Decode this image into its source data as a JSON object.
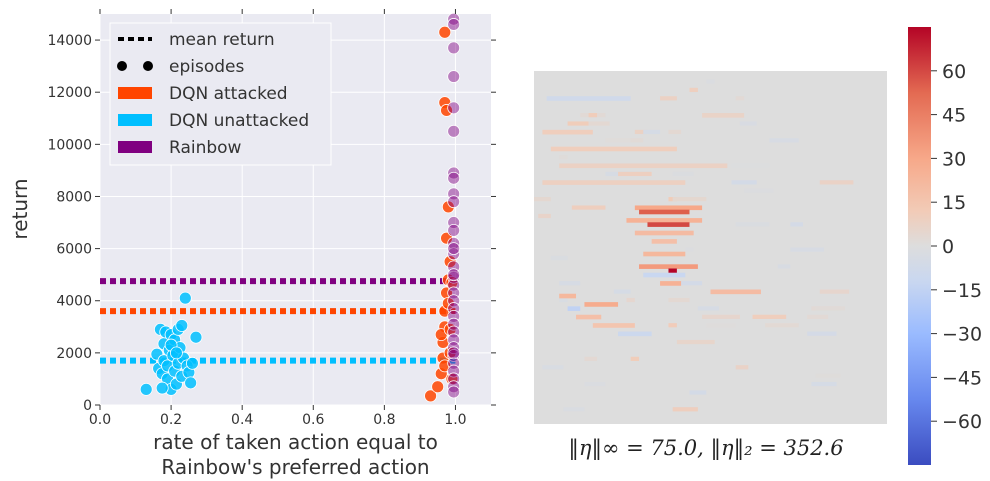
{
  "chart_data": [
    {
      "type": "scatter",
      "xlabel": "rate of taken action equal to\nRainbow's preferred action",
      "ylabel": "return",
      "xlim": [
        0.0,
        1.1
      ],
      "ylim": [
        0,
        15000
      ],
      "xticks": [
        "0.0",
        "0.2",
        "0.4",
        "0.6",
        "0.8",
        "1.0"
      ],
      "yticks": [
        "0",
        "2000",
        "4000",
        "6000",
        "8000",
        "10000",
        "12000",
        "14000"
      ],
      "grid": true,
      "legend_position": "top-left",
      "legend": [
        {
          "label": "mean return",
          "kind": "dotted-line",
          "color": "#000000"
        },
        {
          "label": "episodes",
          "kind": "dots",
          "color": "#000000"
        },
        {
          "label": "DQN attacked",
          "kind": "patch",
          "color": "#ff4500"
        },
        {
          "label": "DQN unattacked",
          "kind": "patch",
          "color": "#00bfff"
        },
        {
          "label": "Rainbow",
          "kind": "patch",
          "color": "#800080"
        }
      ],
      "series": [
        {
          "name": "DQN unattacked",
          "color": "#00bfff",
          "mean": 1700,
          "points": [
            [
              0.13,
              600
            ],
            [
              0.16,
              1950
            ],
            [
              0.165,
              1400
            ],
            [
              0.17,
              2900
            ],
            [
              0.175,
              1200
            ],
            [
              0.18,
              2350
            ],
            [
              0.18,
              1700
            ],
            [
              0.185,
              2800
            ],
            [
              0.19,
              1000
            ],
            [
              0.19,
              1500
            ],
            [
              0.195,
              2100
            ],
            [
              0.2,
              2700
            ],
            [
              0.2,
              600
            ],
            [
              0.205,
              1900
            ],
            [
              0.21,
              1300
            ],
            [
              0.21,
              2500
            ],
            [
              0.215,
              800
            ],
            [
              0.22,
              1600
            ],
            [
              0.22,
              2900
            ],
            [
              0.225,
              2200
            ],
            [
              0.23,
              3050
            ],
            [
              0.23,
              1100
            ],
            [
              0.235,
              1800
            ],
            [
              0.24,
              4100
            ],
            [
              0.245,
              1500
            ],
            [
              0.25,
              1250
            ],
            [
              0.255,
              850
            ],
            [
              0.26,
              1600
            ],
            [
              0.27,
              2600
            ],
            [
              0.175,
              650
            ],
            [
              0.2,
              2300
            ],
            [
              0.215,
              2000
            ]
          ]
        },
        {
          "name": "DQN attacked",
          "color": "#ff4500",
          "mean": 3600,
          "points": [
            [
              0.93,
              350
            ],
            [
              0.95,
              700
            ],
            [
              0.96,
              1200
            ],
            [
              0.965,
              1800
            ],
            [
              0.965,
              2400
            ],
            [
              0.97,
              3000
            ],
            [
              0.97,
              3600
            ],
            [
              0.975,
              4300
            ],
            [
              0.98,
              4800
            ],
            [
              0.975,
              6400
            ],
            [
              0.98,
              7600
            ],
            [
              0.97,
              11600
            ],
            [
              0.97,
              14300
            ],
            [
              0.985,
              2000
            ],
            [
              0.99,
              1000
            ],
            [
              0.985,
              5500
            ],
            [
              0.96,
              2700
            ],
            [
              0.98,
              3900
            ],
            [
              0.99,
              4700
            ],
            [
              0.975,
              11300
            ],
            [
              0.97,
              1500
            ],
            [
              0.985,
              2900
            ]
          ]
        },
        {
          "name": "Rainbow",
          "color": "#800080",
          "mean": 4750,
          "points": [
            [
              0.995,
              14800
            ],
            [
              0.995,
              14600
            ],
            [
              0.995,
              13700
            ],
            [
              0.995,
              12600
            ],
            [
              0.995,
              10500
            ],
            [
              0.995,
              11400
            ],
            [
              0.995,
              8900
            ],
            [
              0.995,
              8700
            ],
            [
              0.995,
              8100
            ],
            [
              0.995,
              7800
            ],
            [
              0.995,
              7000
            ],
            [
              0.995,
              6700
            ],
            [
              0.995,
              6200
            ],
            [
              0.995,
              5800
            ],
            [
              0.995,
              5300
            ],
            [
              0.995,
              4900
            ],
            [
              0.995,
              4600
            ],
            [
              0.995,
              4300
            ],
            [
              0.995,
              4000
            ],
            [
              0.995,
              3700
            ],
            [
              0.995,
              3400
            ],
            [
              0.995,
              3100
            ],
            [
              0.995,
              2800
            ],
            [
              0.995,
              2500
            ],
            [
              0.995,
              2200
            ],
            [
              0.995,
              1900
            ],
            [
              0.995,
              1600
            ],
            [
              0.995,
              1300
            ],
            [
              0.995,
              1000
            ],
            [
              0.995,
              700
            ],
            [
              0.995,
              500
            ],
            [
              0.995,
              6000
            ],
            [
              0.995,
              5000
            ],
            [
              0.995,
              2000
            ]
          ]
        }
      ]
    },
    {
      "type": "heatmap",
      "caption": "‖η‖∞ = 75.0, ‖η‖₂ = 352.6",
      "colorscale": "coolwarm",
      "range": [
        -75,
        75
      ],
      "colorbar_ticks": [
        "60",
        "45",
        "30",
        "15",
        "0",
        "−15",
        "−30",
        "−45",
        "−60"
      ],
      "colorbar_tick_values": [
        60,
        45,
        30,
        15,
        0,
        -15,
        -30,
        -45,
        -60
      ],
      "grid_size": 84,
      "background_value": 0,
      "features": [
        {
          "row": 32,
          "col": 24,
          "len": 16,
          "value": 30
        },
        {
          "row": 33,
          "col": 25,
          "len": 12,
          "value": 55
        },
        {
          "row": 35,
          "col": 22,
          "len": 18,
          "value": 25
        },
        {
          "row": 36,
          "col": 27,
          "len": 10,
          "value": 60
        },
        {
          "row": 38,
          "col": 24,
          "len": 14,
          "value": 20
        },
        {
          "row": 40,
          "col": 28,
          "len": 6,
          "value": 18
        },
        {
          "row": 43,
          "col": 26,
          "len": 10,
          "value": 22
        },
        {
          "row": 46,
          "col": 25,
          "len": 14,
          "value": 35
        },
        {
          "row": 47,
          "col": 32,
          "len": 2,
          "value": 75
        },
        {
          "row": 48,
          "col": 26,
          "len": 10,
          "value": -12
        },
        {
          "row": 50,
          "col": 30,
          "len": 5,
          "value": 25
        },
        {
          "row": 52,
          "col": 42,
          "len": 12,
          "value": 20
        },
        {
          "row": 53,
          "col": 6,
          "len": 4,
          "value": 22
        },
        {
          "row": 55,
          "col": 12,
          "len": 8,
          "value": 28
        },
        {
          "row": 56,
          "col": 8,
          "len": 3,
          "value": -15
        },
        {
          "row": 58,
          "col": 10,
          "len": 6,
          "value": 18
        },
        {
          "row": 60,
          "col": 14,
          "len": 10,
          "value": 15
        },
        {
          "row": 62,
          "col": 20,
          "len": 8,
          "value": -10
        },
        {
          "row": 18,
          "col": 4,
          "len": 30,
          "value": 10
        },
        {
          "row": 22,
          "col": 6,
          "len": 40,
          "value": 8
        },
        {
          "row": 26,
          "col": 2,
          "len": 34,
          "value": 9
        },
        {
          "row": 6,
          "col": 3,
          "len": 20,
          "value": -8
        },
        {
          "row": 10,
          "col": 40,
          "len": 10,
          "value": 7
        },
        {
          "row": 14,
          "col": 2,
          "len": 12,
          "value": 10
        }
      ]
    }
  ]
}
